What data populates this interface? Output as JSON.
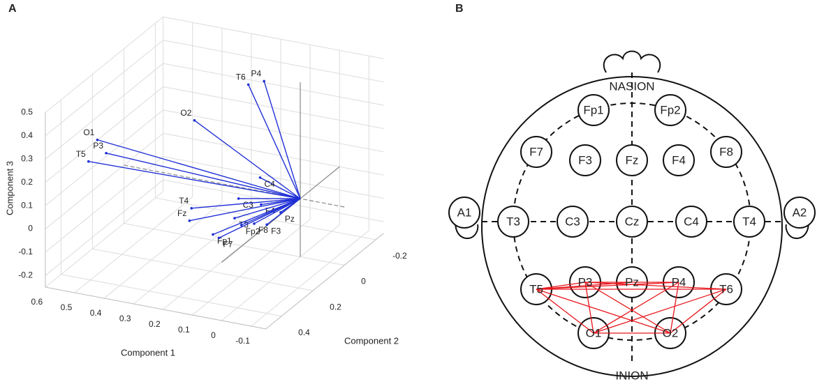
{
  "panel_a": {
    "letter": "A"
  },
  "panel_b": {
    "letter": "B"
  },
  "chart_data": {
    "type": "biplot3d",
    "xlabel": "Component 1",
    "ylabel": "Component 2",
    "zlabel": "Component 3",
    "xlim": [
      -0.15,
      0.6
    ],
    "ylim": [
      -0.25,
      0.5
    ],
    "zlim": [
      -0.25,
      0.5
    ],
    "xticks": [
      -0.1,
      0,
      0.1,
      0.2,
      0.3,
      0.4,
      0.5,
      0.6
    ],
    "yticks": [
      -0.2,
      0,
      0.2,
      0.4
    ],
    "zticks": [
      -0.2,
      -0.1,
      0,
      0.1,
      0.2,
      0.3,
      0.4,
      0.5
    ],
    "grid": true,
    "color": "#1f2fd6",
    "vectors": [
      {
        "name": "O1",
        "x": 0.53,
        "y": 0.3,
        "z": 0.29,
        "label_color": "#e8141b"
      },
      {
        "name": "P3",
        "x": 0.5,
        "y": 0.3,
        "z": 0.24,
        "label_color": "#e8141b"
      },
      {
        "name": "T5",
        "x": 0.56,
        "y": 0.3,
        "z": 0.19,
        "label_color": "#e8141b"
      },
      {
        "name": "O2",
        "x": 0.36,
        "y": 0,
        "z": 0.25,
        "label_color": "#e8141b"
      },
      {
        "name": "T6",
        "x": 0.23,
        "y": -0.1,
        "z": 0.38,
        "label_color": "#e8141b"
      },
      {
        "name": "P4",
        "x": 0.23,
        "y": -0.2,
        "z": 0.34,
        "label_color": "#e8141b"
      },
      {
        "name": "C4",
        "x": 0.19,
        "y": -0.1,
        "z": -0.01,
        "label_color": "#111111"
      },
      {
        "name": "C3",
        "x": 0.21,
        "y": 0,
        "z": -0.05,
        "label_color": "#111111"
      },
      {
        "name": "T4",
        "x": 0.37,
        "y": 0,
        "z": -0.13,
        "label_color": "#111111"
      },
      {
        "name": "F4",
        "x": 0.08,
        "y": 0.1,
        "z": 0.01,
        "label_color": "#111111"
      },
      {
        "name": "Fz",
        "x": 0.27,
        "y": 0.2,
        "z": -0.05,
        "label_color": "#111111"
      },
      {
        "name": "T3",
        "x": 0.17,
        "y": 0.1,
        "z": -0.07,
        "label_color": "#111111"
      },
      {
        "name": "Fp2",
        "x": 0.12,
        "y": 0.15,
        "z": -0.06,
        "label_color": "#111111"
      },
      {
        "name": "Fp1",
        "x": 0.19,
        "y": 0.2,
        "z": -0.09,
        "label_color": "#111111"
      },
      {
        "name": "F7",
        "x": 0.17,
        "y": 0.2,
        "z": -0.1,
        "label_color": "#111111"
      },
      {
        "name": "F8",
        "x": 0.05,
        "y": 0.2,
        "z": -0.01,
        "label_color": "#111111"
      },
      {
        "name": "F3",
        "x": -0.02,
        "y": 0.25,
        "z": 0.03,
        "label_color": "#111111"
      },
      {
        "name": "Pz",
        "x": -0.04,
        "y": 0.2,
        "z": 0.06,
        "label_color": "#111111"
      }
    ]
  },
  "diagram": {
    "nasion": "NASION",
    "inion": "INION",
    "nodes": [
      "Fp1",
      "Fp2",
      "F7",
      "F3",
      "Fz",
      "F4",
      "F8",
      "A1",
      "T3",
      "C3",
      "Cz",
      "C4",
      "T4",
      "A2",
      "T5",
      "P3",
      "Pz",
      "P4",
      "T6",
      "O1",
      "O2"
    ],
    "edge_color": "#e8141b",
    "edges": [
      [
        "T5",
        "P3"
      ],
      [
        "T5",
        "Pz"
      ],
      [
        "T5",
        "P4"
      ],
      [
        "T5",
        "T6"
      ],
      [
        "T5",
        "O1"
      ],
      [
        "T5",
        "O2"
      ],
      [
        "P3",
        "O1"
      ],
      [
        "P3",
        "O2"
      ],
      [
        "P3",
        "P4"
      ],
      [
        "P3",
        "T6"
      ],
      [
        "P4",
        "O1"
      ],
      [
        "P4",
        "O2"
      ],
      [
        "O1",
        "T6"
      ],
      [
        "O2",
        "T6"
      ],
      [
        "O1",
        "O2"
      ]
    ]
  }
}
